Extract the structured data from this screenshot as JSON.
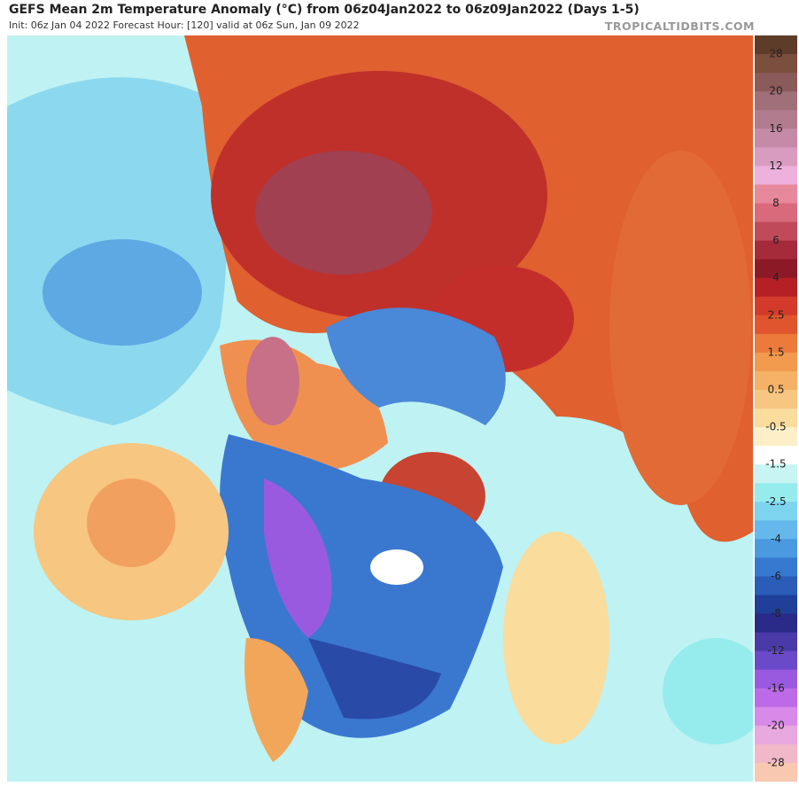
{
  "header": {
    "title": "GEFS Mean 2m Temperature Anomaly (°C) from 06z04Jan2022 to 06z09Jan2022 (Days 1-5)",
    "subtitle": "Init: 06z Jan 04 2022   Forecast Hour: [120]   valid at 06z Sun, Jan 09 2022",
    "credit": "TROPICALTIDBITS.COM"
  },
  "colorbar": {
    "labels": [
      28,
      20,
      16,
      12,
      8,
      6,
      4,
      2.5,
      1.5,
      0.5,
      -0.5,
      -1.5,
      -2.5,
      -4,
      -6,
      -8,
      -12,
      -16,
      -20,
      -28
    ],
    "colors": [
      "#5e3c2a",
      "#7a4f3d",
      "#8b5a5a",
      "#a0707a",
      "#b07c8e",
      "#c48aa8",
      "#d89cc0",
      "#eeb0dc",
      "#e8889c",
      "#d86a7c",
      "#c04a5a",
      "#a52a3a",
      "#8c1a26",
      "#b52025",
      "#d43a2a",
      "#e0552e",
      "#ec7a3a",
      "#f29a4e",
      "#f5b266",
      "#f7c680",
      "#fadc9c",
      "#fdf0c8",
      "#ffffff",
      "#c8f4f4",
      "#96ecec",
      "#7cd4ee",
      "#64b8ec",
      "#4a9ae0",
      "#3778d0",
      "#2a5cb8",
      "#1f3f98",
      "#2a2a88",
      "#4a3aa8",
      "#6a4ac8",
      "#9a5ae0",
      "#bc6ae8",
      "#d88ae8",
      "#e8a8e0",
      "#f0b8c8",
      "#f8c8b0"
    ]
  }
}
